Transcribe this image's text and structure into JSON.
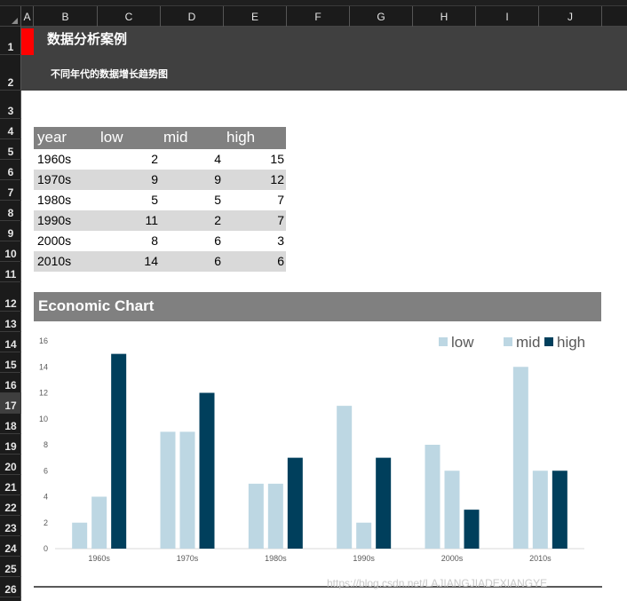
{
  "columns": [
    "A",
    "B",
    "C",
    "D",
    "E",
    "F",
    "G",
    "H",
    "I",
    "J"
  ],
  "rows": [
    "1",
    "2",
    "3",
    "4",
    "5",
    "6",
    "7",
    "8",
    "9",
    "10",
    "11",
    "12",
    "13",
    "14",
    "15",
    "16",
    "17",
    "18",
    "19",
    "20",
    "21",
    "22",
    "23",
    "24",
    "25",
    "26"
  ],
  "active_row": "17",
  "banner": {
    "title": "数据分析案例",
    "subtitle": "不同年代的数据增长趋势图",
    "accent_color": "#ff0000",
    "background_color": "#404040"
  },
  "table": {
    "headers": [
      "year",
      "low",
      "mid",
      "high"
    ],
    "rows": [
      [
        "1960s",
        "2",
        "4",
        "15"
      ],
      [
        "1970s",
        "9",
        "9",
        "12"
      ],
      [
        "1980s",
        "5",
        "5",
        "7"
      ],
      [
        "1990s",
        "11",
        "2",
        "7"
      ],
      [
        "2000s",
        "8",
        "6",
        "3"
      ],
      [
        "2010s",
        "14",
        "6",
        "6"
      ]
    ]
  },
  "chart_header": "Economic Chart",
  "chart_data": {
    "type": "bar",
    "categories": [
      "1960s",
      "1970s",
      "1980s",
      "1990s",
      "2000s",
      "2010s"
    ],
    "series": [
      {
        "name": "low",
        "values": [
          2,
          9,
          5,
          11,
          8,
          14
        ],
        "color": "#bdd7e3"
      },
      {
        "name": "mid",
        "values": [
          4,
          9,
          5,
          2,
          6,
          6
        ],
        "color": "#bdd7e3"
      },
      {
        "name": "high",
        "values": [
          15,
          12,
          7,
          7,
          3,
          6
        ],
        "color": "#003f5c"
      }
    ],
    "ylim": [
      0,
      16
    ],
    "yticks": [
      "0",
      "2",
      "4",
      "6",
      "8",
      "10",
      "12",
      "14",
      "16"
    ],
    "grid": false,
    "legend_position": "top-right"
  },
  "watermark": "https://blog.csdn.net/LAJIANGJIADEXIANGYE"
}
